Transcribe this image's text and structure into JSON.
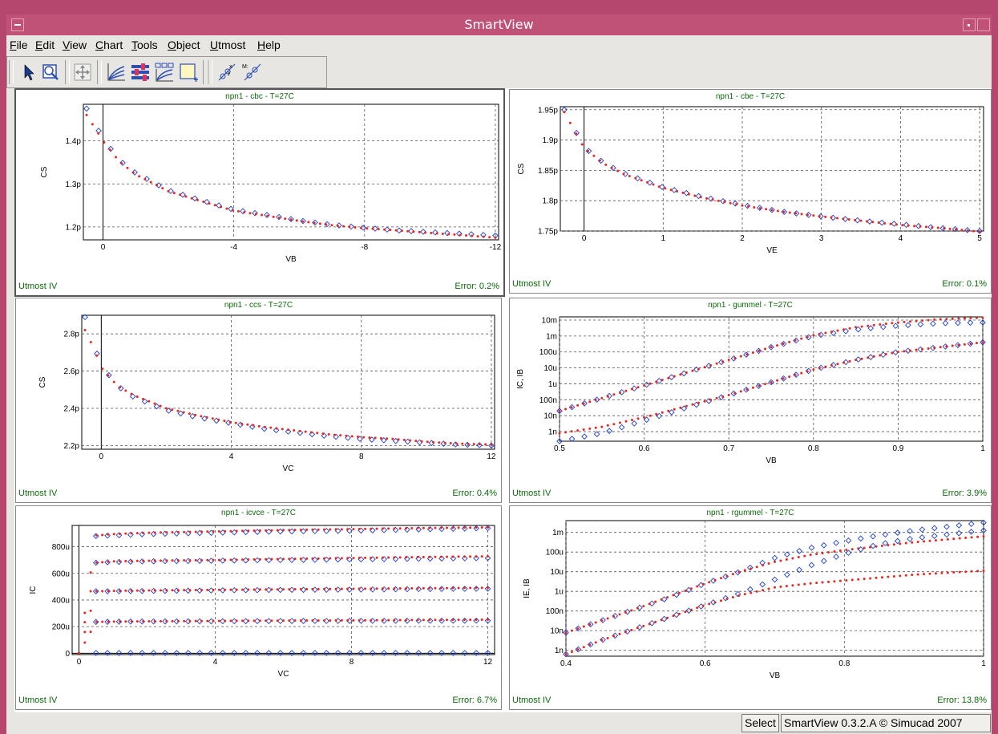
{
  "window": {
    "title": "SmartView"
  },
  "menu": [
    "File",
    "Edit",
    "View",
    "Chart",
    "Tools",
    "Object",
    "Utmost",
    "Help"
  ],
  "toolbar": {
    "icons": [
      "select-arrow-icon",
      "zoom-icon",
      "pan-icon",
      "curves-icon",
      "sliders-icon",
      "multi-chart-icon",
      "new-chart-icon",
      "fit-xy-icon",
      "fit-m-icon"
    ]
  },
  "status": {
    "mode": "Select",
    "version": "SmartView 0.3.2.A © Simucad 2007"
  },
  "colors": {
    "measured": "#1f3fd8",
    "simulated": "#e8281f",
    "title_green": "#0a6b0a"
  },
  "chart_data": [
    {
      "title": "npn1 - cbc - T=27C",
      "type": "scatter",
      "xlabel": "VB",
      "ylabel": "CS",
      "footer_left": "Utmost IV",
      "footer_right": "Error: 0.2%",
      "x_reversed": true,
      "xlim": [
        0.6,
        -12.1
      ],
      "ylim": [
        1.17,
        1.485
      ],
      "xticks": [
        0,
        -4,
        -8,
        -12
      ],
      "xtick_labels": [
        "0",
        "-4",
        "-8",
        "-12"
      ],
      "yticks": [
        1.2,
        1.3,
        1.4
      ],
      "ytick_labels": [
        "1.2p",
        "1.3p",
        "1.4p"
      ],
      "series": [
        {
          "kind": "measured",
          "x": [
            0.5,
            0,
            -0.5,
            -1,
            -2,
            -3,
            -4,
            -5,
            -6,
            -7,
            -8,
            -9,
            -10,
            -11,
            -12
          ],
          "y": [
            1.475,
            1.405,
            1.355,
            1.325,
            1.285,
            1.262,
            1.24,
            1.228,
            1.215,
            1.205,
            1.198,
            1.192,
            1.188,
            1.184,
            1.18
          ]
        },
        {
          "kind": "simulated",
          "x": [
            0.5,
            0,
            -0.5,
            -1,
            -2,
            -3,
            -4,
            -5,
            -6,
            -7,
            -8,
            -9,
            -10,
            -11,
            -12
          ],
          "y": [
            1.46,
            1.4,
            1.352,
            1.322,
            1.283,
            1.26,
            1.238,
            1.226,
            1.214,
            1.204,
            1.197,
            1.192,
            1.186,
            1.181,
            1.175
          ]
        }
      ]
    },
    {
      "title": "npn1 - cbe - T=27C",
      "type": "scatter",
      "xlabel": "VE",
      "ylabel": "CS",
      "footer_left": "Utmost IV",
      "footer_right": "Error: 0.1%",
      "xlim": [
        -0.3,
        5.05
      ],
      "ylim": [
        1.75,
        1.955
      ],
      "xticks": [
        0,
        1,
        2,
        3,
        4,
        5
      ],
      "xtick_labels": [
        "0",
        "1",
        "2",
        "3",
        "4",
        "5"
      ],
      "yticks": [
        1.75,
        1.8,
        1.85,
        1.9,
        1.95
      ],
      "ytick_labels": [
        "1.75p",
        "1.8p",
        "1.85p",
        "1.9p",
        "1.95p"
      ],
      "series": [
        {
          "kind": "measured",
          "x": [
            -0.25,
            0,
            0.25,
            0.5,
            1,
            1.5,
            2,
            2.5,
            3,
            3.5,
            4,
            4.5,
            5
          ],
          "y": [
            1.95,
            1.888,
            1.862,
            1.845,
            1.822,
            1.806,
            1.793,
            1.782,
            1.774,
            1.767,
            1.761,
            1.755,
            1.75
          ]
        },
        {
          "kind": "simulated",
          "x": [
            -0.25,
            0,
            0.25,
            0.5,
            1,
            1.5,
            2,
            2.5,
            3,
            3.5,
            4,
            4.5,
            5
          ],
          "y": [
            1.946,
            1.887,
            1.861,
            1.844,
            1.821,
            1.805,
            1.792,
            1.782,
            1.774,
            1.767,
            1.76,
            1.755,
            1.749
          ]
        }
      ]
    },
    {
      "title": "npn1 - ccs - T=27C",
      "type": "scatter",
      "xlabel": "VC",
      "ylabel": "CS",
      "footer_left": "Utmost IV",
      "footer_right": "Error: 0.4%",
      "xlim": [
        -0.6,
        12.1
      ],
      "ylim": [
        2.18,
        2.9
      ],
      "xticks": [
        0,
        4,
        8,
        12
      ],
      "xtick_labels": [
        "0",
        "4",
        "8",
        "12"
      ],
      "yticks": [
        2.2,
        2.4,
        2.6,
        2.8
      ],
      "ytick_labels": [
        "2.2p",
        "2.4p",
        "2.6p",
        "2.8p"
      ],
      "series": [
        {
          "kind": "measured",
          "x": [
            -0.5,
            -0.25,
            0,
            0.5,
            1,
            2,
            3,
            4,
            5,
            6,
            7,
            8,
            9,
            10,
            11,
            12
          ],
          "y": [
            2.89,
            2.75,
            2.63,
            2.52,
            2.46,
            2.39,
            2.35,
            2.32,
            2.29,
            2.27,
            2.25,
            2.235,
            2.225,
            2.215,
            2.205,
            2.2
          ]
        },
        {
          "kind": "simulated",
          "x": [
            -0.5,
            -0.25,
            0,
            0.5,
            1,
            2,
            3,
            4,
            5,
            6,
            7,
            8,
            9,
            10,
            11,
            12
          ],
          "y": [
            2.82,
            2.73,
            2.62,
            2.52,
            2.47,
            2.4,
            2.36,
            2.325,
            2.3,
            2.28,
            2.26,
            2.245,
            2.235,
            2.22,
            2.21,
            2.205
          ]
        }
      ]
    },
    {
      "title": "npn1 - gummel - T=27C",
      "type": "scatter",
      "xlabel": "VB",
      "ylabel": "IC, IB",
      "footer_left": "Utmost IV",
      "footer_right": "Error: 3.9%",
      "log_y": true,
      "xlim": [
        0.5,
        1.0
      ],
      "ylim": [
        -9.6,
        -1.8
      ],
      "xticks": [
        0.5,
        0.6,
        0.7,
        0.8,
        0.9,
        1
      ],
      "xtick_labels": [
        "0.5",
        "0.6",
        "0.7",
        "0.8",
        "0.9",
        "1"
      ],
      "yticks": [
        -9,
        -8,
        -7,
        -6,
        -5,
        -4,
        -3,
        -2
      ],
      "ytick_labels": [
        "1n",
        "10n",
        "100n",
        "1u",
        "10u",
        "100u",
        "1m",
        "10m"
      ],
      "series": [
        {
          "kind": "measured",
          "x": [
            0.5,
            0.55,
            0.6,
            0.65,
            0.7,
            0.75,
            0.8,
            0.85,
            0.9,
            0.95,
            1.0
          ],
          "y": [
            -7.7,
            -6.9,
            -6.1,
            -5.3,
            -4.5,
            -3.7,
            -3.0,
            -2.6,
            -2.35,
            -2.2,
            -2.15
          ]
        },
        {
          "kind": "simulated",
          "x": [
            0.5,
            0.55,
            0.6,
            0.65,
            0.7,
            0.75,
            0.8,
            0.85,
            0.9,
            0.95,
            1.0
          ],
          "y": [
            -7.7,
            -6.9,
            -6.1,
            -5.3,
            -4.5,
            -3.7,
            -2.95,
            -2.45,
            -2.15,
            -1.95,
            -1.85
          ]
        },
        {
          "kind": "measured",
          "x": [
            0.5,
            0.55,
            0.6,
            0.65,
            0.7,
            0.75,
            0.8,
            0.85,
            0.9,
            0.95,
            1.0
          ],
          "y": [
            -9.6,
            -9.1,
            -8.3,
            -7.5,
            -6.7,
            -5.9,
            -5.1,
            -4.5,
            -4.0,
            -3.7,
            -3.4
          ]
        },
        {
          "kind": "simulated",
          "x": [
            0.5,
            0.55,
            0.6,
            0.65,
            0.7,
            0.75,
            0.8,
            0.85,
            0.9,
            0.95,
            1.0
          ],
          "y": [
            -9.1,
            -8.7,
            -8.1,
            -7.4,
            -6.7,
            -5.9,
            -5.1,
            -4.5,
            -4.0,
            -3.7,
            -3.4
          ]
        }
      ]
    },
    {
      "title": "npn1 - icvce - T=27C",
      "type": "scatter",
      "xlabel": "VC",
      "ylabel": "IC",
      "footer_left": "Utmost IV",
      "footer_right": "Error: 6.7%",
      "xlim": [
        -0.2,
        12.2
      ],
      "ylim": [
        -10,
        960
      ],
      "xticks": [
        0,
        4,
        8,
        12
      ],
      "xtick_labels": [
        "0",
        "4",
        "8",
        "12"
      ],
      "yticks": [
        0,
        200,
        400,
        600,
        800
      ],
      "ytick_labels": [
        "0",
        "200u",
        "400u",
        "600u",
        "800u"
      ],
      "series": [
        {
          "kind": "measured",
          "x": [
            0.5,
            1,
            2,
            4,
            6,
            8,
            10,
            12
          ],
          "y": [
            880,
            885,
            895,
            905,
            915,
            920,
            930,
            940
          ]
        },
        {
          "kind": "measured",
          "x": [
            0.5,
            1,
            2,
            4,
            6,
            8,
            10,
            12
          ],
          "y": [
            680,
            685,
            690,
            695,
            700,
            705,
            710,
            715
          ]
        },
        {
          "kind": "measured",
          "x": [
            0.5,
            1,
            2,
            4,
            6,
            8,
            10,
            12
          ],
          "y": [
            465,
            466,
            468,
            472,
            476,
            478,
            482,
            485
          ]
        },
        {
          "kind": "measured",
          "x": [
            0.5,
            1,
            2,
            4,
            6,
            8,
            10,
            12
          ],
          "y": [
            235,
            237,
            239,
            240,
            242,
            243,
            244,
            245
          ]
        },
        {
          "kind": "measured",
          "x": [
            0.5,
            1,
            2,
            4,
            6,
            8,
            10,
            12
          ],
          "y": [
            2,
            2,
            2,
            2,
            2,
            2,
            2,
            2
          ]
        },
        {
          "kind": "simulated",
          "x": [
            0,
            0.5,
            1,
            2,
            4,
            6,
            8,
            10,
            12
          ],
          "y": [
            0,
            885,
            895,
            905,
            915,
            925,
            932,
            940,
            945
          ]
        },
        {
          "kind": "simulated",
          "x": [
            0,
            0.5,
            1,
            2,
            4,
            6,
            8,
            10,
            12
          ],
          "y": [
            0,
            680,
            690,
            695,
            700,
            708,
            715,
            722,
            728
          ]
        },
        {
          "kind": "simulated",
          "x": [
            0,
            0.5,
            1,
            2,
            4,
            6,
            8,
            10,
            12
          ],
          "y": [
            0,
            465,
            468,
            472,
            476,
            480,
            484,
            488,
            492
          ]
        },
        {
          "kind": "simulated",
          "x": [
            0,
            0.5,
            1,
            2,
            4,
            6,
            8,
            10,
            12
          ],
          "y": [
            0,
            235,
            238,
            240,
            243,
            245,
            247,
            250,
            252
          ]
        }
      ]
    },
    {
      "title": "npn1 - rgummel - T=27C",
      "type": "scatter",
      "xlabel": "VB",
      "ylabel": "IE, IB",
      "footer_left": "Utmost IV",
      "footer_right": "Error: 13.8%",
      "log_y": true,
      "xlim": [
        0.4,
        1.0
      ],
      "ylim": [
        -9.3,
        -2.4
      ],
      "xticks": [
        0.4,
        0.6,
        0.8,
        1
      ],
      "xtick_labels": [
        "0.4",
        "0.6",
        "0.8",
        "1"
      ],
      "yticks": [
        -9,
        -8,
        -7,
        -6,
        -5,
        -4,
        -3
      ],
      "ytick_labels": [
        "1n",
        "10n",
        "100n",
        "1u",
        "10u",
        "100u",
        "1m"
      ],
      "series": [
        {
          "kind": "measured",
          "x": [
            0.4,
            0.45,
            0.5,
            0.55,
            0.6,
            0.65,
            0.7,
            0.75,
            0.8,
            0.85,
            0.9,
            0.95,
            1.0
          ],
          "y": [
            -8.1,
            -7.5,
            -6.9,
            -6.3,
            -5.6,
            -5.0,
            -4.3,
            -3.8,
            -3.45,
            -3.15,
            -2.9,
            -2.7,
            -2.5
          ]
        },
        {
          "kind": "simulated",
          "x": [
            0.4,
            0.45,
            0.5,
            0.55,
            0.6,
            0.65,
            0.7,
            0.75,
            0.8,
            0.85,
            0.9,
            0.95,
            1.0
          ],
          "y": [
            -8.1,
            -7.5,
            -6.9,
            -6.25,
            -5.6,
            -5.0,
            -4.5,
            -4.15,
            -3.9,
            -3.7,
            -3.5,
            -3.35,
            -3.2
          ]
        },
        {
          "kind": "measured",
          "x": [
            0.4,
            0.45,
            0.5,
            0.55,
            0.6,
            0.65,
            0.7,
            0.75,
            0.8,
            0.85,
            0.9,
            0.95,
            1.0
          ],
          "y": [
            -9.2,
            -8.5,
            -7.9,
            -7.3,
            -6.7,
            -6.1,
            -5.4,
            -4.7,
            -4.1,
            -3.6,
            -3.3,
            -3.1,
            -2.9
          ]
        },
        {
          "kind": "simulated",
          "x": [
            0.4,
            0.45,
            0.5,
            0.55,
            0.6,
            0.65,
            0.7,
            0.75,
            0.8,
            0.85,
            0.9,
            0.95,
            1.0
          ],
          "y": [
            -9.2,
            -8.5,
            -7.9,
            -7.3,
            -6.7,
            -6.2,
            -5.8,
            -5.6,
            -5.45,
            -5.3,
            -5.15,
            -5.05,
            -4.95
          ]
        }
      ]
    }
  ]
}
